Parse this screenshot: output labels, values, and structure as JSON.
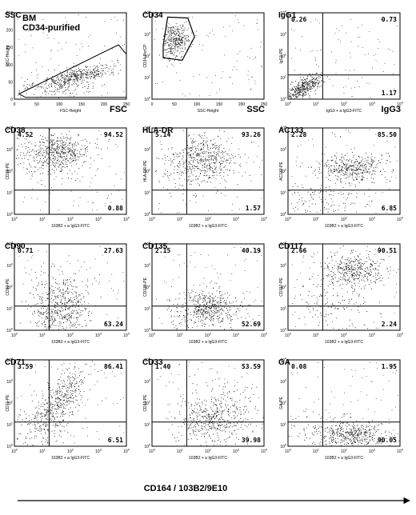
{
  "chart_data": [
    {
      "type": "scatter",
      "panel_label": "SSC",
      "sample_label": [
        "BM",
        "CD34-purified"
      ],
      "xlabel": "FSC-Height",
      "ylabel": "SSC-Height",
      "corner_label": "FSC",
      "xlim": [
        0,
        250
      ],
      "ylim": [
        0,
        250
      ],
      "x_ticks": [
        "0",
        "50",
        "100",
        "150",
        "200",
        "250"
      ],
      "y_ticks": [
        "0",
        "50",
        "100",
        "150",
        "200",
        "250"
      ],
      "gate": "polygon",
      "quadrants": []
    },
    {
      "type": "scatter",
      "panel_label": "CD34",
      "xlabel": "SSC-Height",
      "ylabel": "CD34-PerCP",
      "corner_label": "SSC",
      "x_scale": "linear",
      "y_scale": "log",
      "xlim": [
        0,
        250
      ],
      "ylim": [
        1,
        10000
      ],
      "x_ticks": [
        "0",
        "50",
        "100",
        "150",
        "200",
        "250"
      ],
      "gate": "polygon",
      "quadrants": []
    },
    {
      "type": "scatter",
      "panel_label": "IgG1",
      "xlabel": "IgG3 + a IgG3-FITC",
      "ylabel": "IgG1-PE",
      "corner_label": "IgG3",
      "x_scale": "log",
      "y_scale": "log",
      "xlim": [
        1,
        10000
      ],
      "ylim": [
        1,
        10000
      ],
      "quadrants": [
        "0.26",
        "0.73",
        "",
        "1.17"
      ]
    },
    {
      "type": "scatter",
      "panel_label": "CD38",
      "xlabel": "103B2 + a IgG3-FITC",
      "ylabel": "CD38-PE",
      "x_scale": "log",
      "y_scale": "log",
      "xlim": [
        1,
        10000
      ],
      "ylim": [
        1,
        10000
      ],
      "quadrants": [
        "4.52",
        "94.52",
        "",
        "0.88"
      ]
    },
    {
      "type": "scatter",
      "panel_label": "HLA-DR",
      "xlabel": "103B2 + a IgG3-FITC",
      "ylabel": "HLA-DR-PE",
      "x_scale": "log",
      "y_scale": "log",
      "xlim": [
        1,
        10000
      ],
      "ylim": [
        1,
        10000
      ],
      "quadrants": [
        "5.14",
        "93.26",
        "",
        "1.57"
      ]
    },
    {
      "type": "scatter",
      "panel_label": "AC133",
      "xlabel": "103B2 + a IgG3-FITC",
      "ylabel": "AC133-PE",
      "x_scale": "log",
      "y_scale": "log",
      "xlim": [
        1,
        10000
      ],
      "ylim": [
        1,
        10000
      ],
      "quadrants": [
        "2.28",
        "85.50",
        "",
        "6.85"
      ]
    },
    {
      "type": "scatter",
      "panel_label": "CD90",
      "xlabel": "103B2 + a IgG3-FITC",
      "ylabel": "CD90-PE",
      "x_scale": "log",
      "y_scale": "log",
      "xlim": [
        1,
        10000
      ],
      "ylim": [
        1,
        10000
      ],
      "quadrants": [
        "0.71",
        "27.63",
        "",
        "63.24"
      ]
    },
    {
      "type": "scatter",
      "panel_label": "CD135",
      "xlabel": "103B2 + a IgG3-FITC",
      "ylabel": "CD135-PE",
      "x_scale": "log",
      "y_scale": "log",
      "xlim": [
        1,
        10000
      ],
      "ylim": [
        1,
        10000
      ],
      "quadrants": [
        "2.15",
        "40.19",
        "",
        "52.69"
      ]
    },
    {
      "type": "scatter",
      "panel_label": "CD117",
      "xlabel": "103B2 + a IgG3-FITC",
      "ylabel": "CD117-PE",
      "x_scale": "log",
      "y_scale": "log",
      "xlim": [
        1,
        10000
      ],
      "ylim": [
        1,
        10000
      ],
      "quadrants": [
        "2.66",
        "90.51",
        "",
        "2.24"
      ]
    },
    {
      "type": "scatter",
      "panel_label": "CD71",
      "xlabel": "103B2 + a IgG3-FITC",
      "ylabel": "CD71-PE",
      "x_scale": "log",
      "y_scale": "log",
      "xlim": [
        1,
        10000
      ],
      "ylim": [
        1,
        10000
      ],
      "quadrants": [
        "3.59",
        "86.41",
        "",
        "6.51"
      ]
    },
    {
      "type": "scatter",
      "panel_label": "CD33",
      "xlabel": "103B2 + a IgG3-FITC",
      "ylabel": "CD33-PE",
      "x_scale": "log",
      "y_scale": "log",
      "xlim": [
        1,
        10000
      ],
      "ylim": [
        1,
        10000
      ],
      "quadrants": [
        "1.40",
        "53.59",
        "",
        "39.98"
      ]
    },
    {
      "type": "scatter",
      "panel_label": "GA",
      "xlabel": "103B2 + a IgG3-FITC",
      "ylabel": "GA-PE",
      "x_scale": "log",
      "y_scale": "log",
      "xlim": [
        1,
        10000
      ],
      "ylim": [
        1,
        10000
      ],
      "quadrants": [
        "0.08",
        "1.95",
        "",
        "90.05"
      ]
    }
  ],
  "caption": "CD164 / 103B2/9E10",
  "axis_texts": {
    "log_base": "10",
    "log_exps": [
      "0",
      "1",
      "2",
      "3",
      "4"
    ]
  }
}
